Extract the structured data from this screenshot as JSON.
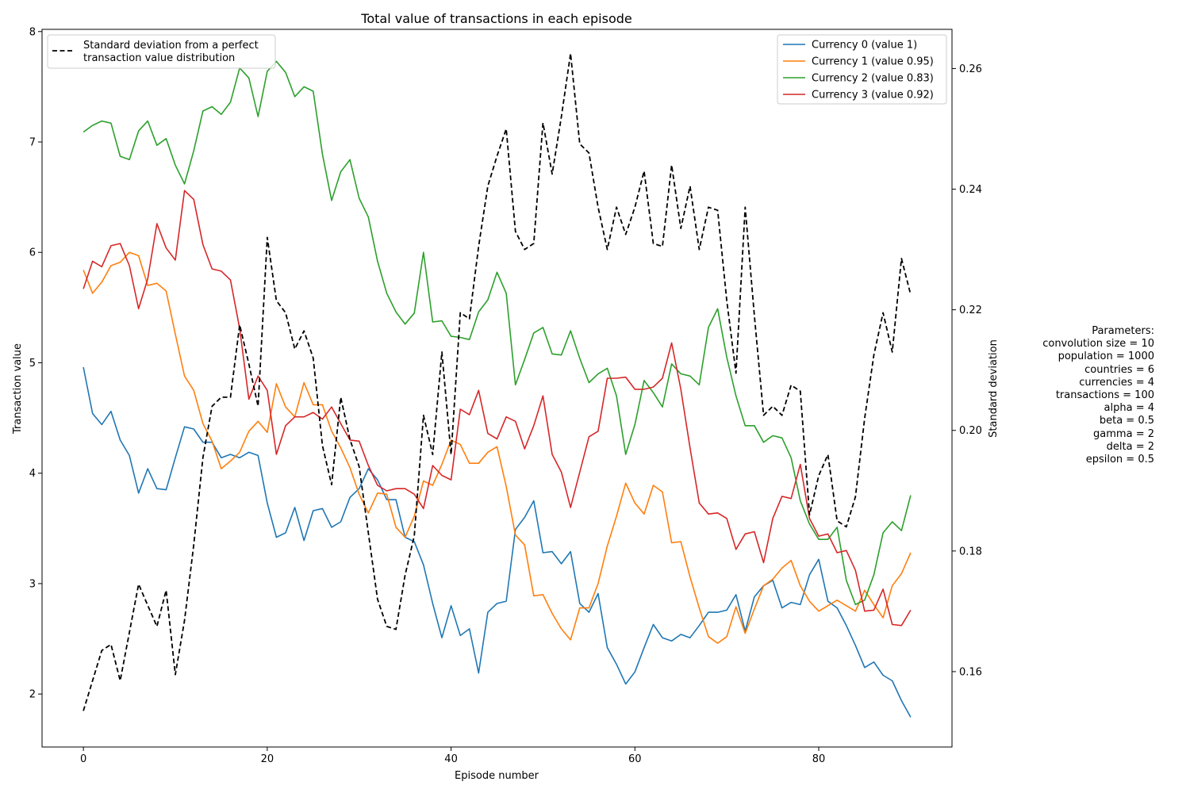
{
  "chart_data": {
    "type": "line",
    "title": "Total value of transactions in each episode",
    "xlabel": "Episode number",
    "ylabel": "Transaction value",
    "y2label": "Standard deviation",
    "xlim": [
      -4.5,
      94.5
    ],
    "ylim": [
      1.52,
      8.02
    ],
    "y2lim": [
      0.1475,
      0.2665
    ],
    "x_ticks": [
      0,
      20,
      40,
      60,
      80
    ],
    "y_ticks": [
      2,
      3,
      4,
      5,
      6,
      7,
      8
    ],
    "y2_ticks": [
      0.16,
      0.18,
      0.2,
      0.22,
      0.24,
      0.26
    ],
    "grid": false,
    "legend_right_placement": "upper right",
    "legend_left_placement": "upper left",
    "series": [
      {
        "name": "Currency 0 (value 1)",
        "color": "#1f77b4",
        "axis": "left",
        "values": [
          4.96,
          4.54,
          4.44,
          4.56,
          4.3,
          4.16,
          3.82,
          4.04,
          3.86,
          3.85,
          4.14,
          4.42,
          4.4,
          4.28,
          4.28,
          4.14,
          4.17,
          4.14,
          4.19,
          4.16,
          3.73,
          3.42,
          3.46,
          3.69,
          3.39,
          3.66,
          3.68,
          3.51,
          3.56,
          3.78,
          3.86,
          4.04,
          3.94,
          3.76,
          3.76,
          3.42,
          3.38,
          3.17,
          2.82,
          2.51,
          2.8,
          2.53,
          2.59,
          2.19,
          2.74,
          2.82,
          2.84,
          3.49,
          3.6,
          3.75,
          3.28,
          3.29,
          3.18,
          3.29,
          2.82,
          2.74,
          2.91,
          2.42,
          2.27,
          2.09,
          2.2,
          2.42,
          2.63,
          2.51,
          2.48,
          2.54,
          2.51,
          2.62,
          2.74,
          2.74,
          2.76,
          2.9,
          2.57,
          2.88,
          2.98,
          3.03,
          2.78,
          2.83,
          2.81,
          3.08,
          3.22,
          2.84,
          2.78,
          2.62,
          2.44,
          2.24,
          2.29,
          2.17,
          2.12,
          1.94,
          1.79
        ]
      },
      {
        "name": "Currency 1 (value 0.95)",
        "color": "#ff7f0e",
        "axis": "left",
        "values": [
          5.84,
          5.63,
          5.73,
          5.88,
          5.91,
          6.0,
          5.97,
          5.7,
          5.72,
          5.65,
          5.26,
          4.88,
          4.75,
          4.45,
          4.29,
          4.04,
          4.11,
          4.19,
          4.38,
          4.47,
          4.37,
          4.81,
          4.6,
          4.51,
          4.82,
          4.62,
          4.62,
          4.38,
          4.23,
          4.05,
          3.81,
          3.64,
          3.82,
          3.81,
          3.51,
          3.42,
          3.61,
          3.93,
          3.89,
          4.08,
          4.3,
          4.26,
          4.09,
          4.09,
          4.19,
          4.24,
          3.88,
          3.44,
          3.35,
          2.89,
          2.9,
          2.73,
          2.59,
          2.49,
          2.78,
          2.78,
          3.0,
          3.34,
          3.61,
          3.91,
          3.73,
          3.63,
          3.89,
          3.83,
          3.37,
          3.38,
          3.06,
          2.78,
          2.52,
          2.46,
          2.52,
          2.79,
          2.55,
          2.77,
          2.98,
          3.04,
          3.14,
          3.21,
          2.98,
          2.84,
          2.75,
          2.8,
          2.85,
          2.8,
          2.75,
          2.94,
          2.81,
          2.69,
          2.98,
          3.09,
          3.28
        ]
      },
      {
        "name": "Currency 2 (value 0.83)",
        "color": "#2ca02c",
        "axis": "left",
        "values": [
          7.09,
          7.15,
          7.19,
          7.17,
          6.87,
          6.84,
          7.1,
          7.19,
          6.97,
          7.03,
          6.79,
          6.62,
          6.92,
          7.28,
          7.32,
          7.25,
          7.36,
          7.67,
          7.58,
          7.23,
          7.64,
          7.73,
          7.63,
          7.41,
          7.5,
          7.46,
          6.89,
          6.47,
          6.73,
          6.84,
          6.49,
          6.32,
          5.92,
          5.63,
          5.46,
          5.35,
          5.45,
          6.0,
          5.37,
          5.38,
          5.24,
          5.23,
          5.21,
          5.46,
          5.57,
          5.82,
          5.63,
          4.8,
          5.03,
          5.27,
          5.32,
          5.08,
          5.07,
          5.29,
          5.04,
          4.82,
          4.9,
          4.95,
          4.7,
          4.17,
          4.44,
          4.84,
          4.73,
          4.6,
          4.99,
          4.9,
          4.88,
          4.8,
          5.32,
          5.49,
          5.05,
          4.7,
          4.43,
          4.43,
          4.28,
          4.34,
          4.32,
          4.14,
          3.75,
          3.54,
          3.4,
          3.4,
          3.51,
          3.03,
          2.81,
          2.85,
          3.08,
          3.46,
          3.56,
          3.48,
          3.8
        ]
      },
      {
        "name": "Currency 3 (value 0.92)",
        "color": "#d62728",
        "axis": "left",
        "values": [
          5.67,
          5.92,
          5.87,
          6.06,
          6.08,
          5.88,
          5.49,
          5.76,
          6.26,
          6.04,
          5.93,
          6.56,
          6.48,
          6.07,
          5.85,
          5.83,
          5.75,
          5.31,
          4.67,
          4.88,
          4.75,
          4.17,
          4.43,
          4.51,
          4.51,
          4.55,
          4.49,
          4.6,
          4.45,
          4.3,
          4.29,
          4.07,
          3.89,
          3.84,
          3.86,
          3.86,
          3.81,
          3.68,
          4.07,
          3.98,
          3.94,
          4.58,
          4.53,
          4.75,
          4.36,
          4.31,
          4.51,
          4.47,
          4.22,
          4.43,
          4.7,
          4.17,
          4.01,
          3.69,
          4.01,
          4.33,
          4.38,
          4.86,
          4.86,
          4.87,
          4.76,
          4.76,
          4.78,
          4.86,
          5.18,
          4.76,
          4.23,
          3.73,
          3.63,
          3.64,
          3.59,
          3.31,
          3.45,
          3.47,
          3.19,
          3.59,
          3.79,
          3.77,
          4.08,
          3.59,
          3.43,
          3.45,
          3.28,
          3.3,
          3.12,
          2.75,
          2.76,
          2.95,
          2.63,
          2.62,
          2.76
        ]
      },
      {
        "name": "Standard deviation from a perfect transaction value distribution",
        "color": "#000000",
        "axis": "right",
        "dashed": true,
        "values": [
          0.1535,
          0.1585,
          0.1635,
          0.1645,
          0.1585,
          0.1665,
          0.1745,
          0.171,
          0.1675,
          0.1735,
          0.1595,
          0.1685,
          0.181,
          0.1955,
          0.204,
          0.2055,
          0.2055,
          0.2175,
          0.211,
          0.204,
          0.232,
          0.2215,
          0.2195,
          0.2135,
          0.2165,
          0.212,
          0.1975,
          0.191,
          0.2055,
          0.1985,
          0.194,
          0.183,
          0.172,
          0.1675,
          0.167,
          0.176,
          0.1825,
          0.2025,
          0.196,
          0.213,
          0.196,
          0.2195,
          0.2185,
          0.2305,
          0.2405,
          0.2455,
          0.25,
          0.233,
          0.23,
          0.231,
          0.251,
          0.2425,
          0.252,
          0.2625,
          0.2475,
          0.246,
          0.237,
          0.23,
          0.237,
          0.2325,
          0.237,
          0.243,
          0.231,
          0.2305,
          0.244,
          0.2335,
          0.2405,
          0.23,
          0.237,
          0.2365,
          0.2215,
          0.2095,
          0.237,
          0.219,
          0.2025,
          0.204,
          0.2025,
          0.2075,
          0.2065,
          0.186,
          0.1925,
          0.196,
          0.185,
          0.184,
          0.189,
          0.202,
          0.2125,
          0.2195,
          0.213,
          0.2285,
          0.2225
        ]
      }
    ],
    "legend_right": [
      "Currency 0 (value 1)",
      "Currency 1 (value 0.95)",
      "Currency 2 (value 0.83)",
      "Currency 3 (value 0.92)"
    ],
    "legend_left": [
      "Standard deviation from a perfect",
      "transaction value distribution"
    ],
    "parameters": [
      "Parameters:",
      "convolution size = 10",
      "population = 1000",
      "countries = 6",
      "currencies = 4",
      "transactions = 100",
      "alpha = 4",
      "beta = 0.5",
      "gamma = 2",
      "delta = 2",
      "epsilon = 0.5"
    ]
  }
}
